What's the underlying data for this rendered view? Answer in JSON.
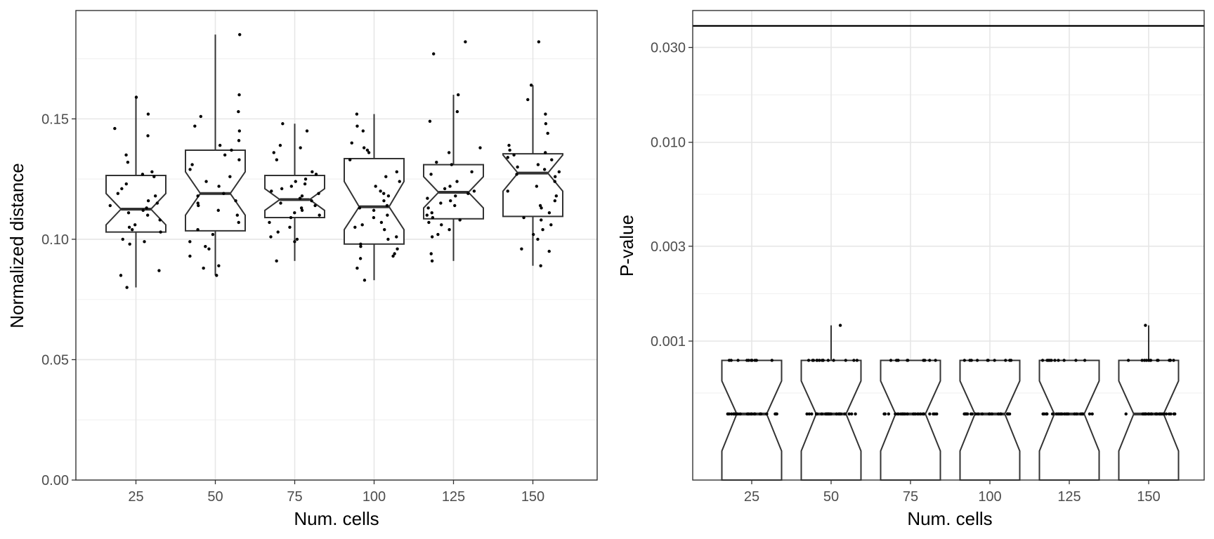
{
  "chart_data": [
    {
      "type": "boxplot",
      "notched": true,
      "xlabel": "Num. cells",
      "ylabel": "Normalized distance",
      "categories": [
        "25",
        "50",
        "75",
        "100",
        "125",
        "150"
      ],
      "ylim": [
        0,
        0.195
      ],
      "y_ticks": [
        "0.00",
        "0.05",
        "0.10",
        "0.15"
      ],
      "y_tick_values": [
        0,
        0.05,
        0.1,
        0.15
      ],
      "grid": true,
      "boxes": [
        {
          "category": "25",
          "min": 0.08,
          "q1": 0.103,
          "median": 0.1125,
          "q3": 0.1265,
          "max": 0.159,
          "notch": [
            0.106,
            0.119
          ]
        },
        {
          "category": "50",
          "min": 0.085,
          "q1": 0.1035,
          "median": 0.119,
          "q3": 0.137,
          "max": 0.185,
          "notch": [
            0.11,
            0.128
          ]
        },
        {
          "category": "75",
          "min": 0.091,
          "q1": 0.109,
          "median": 0.1165,
          "q3": 0.1265,
          "max": 0.148,
          "notch": [
            0.112,
            0.121
          ]
        },
        {
          "category": "100",
          "min": 0.083,
          "q1": 0.098,
          "median": 0.1135,
          "q3": 0.1335,
          "max": 0.152,
          "notch": [
            0.104,
            0.124
          ]
        },
        {
          "category": "125",
          "min": 0.091,
          "q1": 0.1085,
          "median": 0.1195,
          "q3": 0.131,
          "max": 0.16,
          "notch": [
            0.113,
            0.126
          ]
        },
        {
          "category": "150",
          "min": 0.089,
          "q1": 0.1095,
          "median": 0.1275,
          "q3": 0.1355,
          "max": 0.164,
          "notch": [
            0.12,
            0.135
          ]
        }
      ],
      "points": [
        {
          "category": "25",
          "values": [
            0.08,
            0.085,
            0.087,
            0.098,
            0.099,
            0.1,
            0.103,
            0.104,
            0.105,
            0.106,
            0.108,
            0.11,
            0.111,
            0.112,
            0.113,
            0.114,
            0.115,
            0.116,
            0.118,
            0.119,
            0.121,
            0.123,
            0.126,
            0.127,
            0.128,
            0.132,
            0.135,
            0.143,
            0.146,
            0.152,
            0.159
          ]
        },
        {
          "category": "50",
          "values": [
            0.085,
            0.088,
            0.089,
            0.093,
            0.096,
            0.097,
            0.099,
            0.102,
            0.104,
            0.107,
            0.11,
            0.112,
            0.114,
            0.115,
            0.116,
            0.118,
            0.119,
            0.122,
            0.124,
            0.126,
            0.129,
            0.131,
            0.133,
            0.135,
            0.137,
            0.139,
            0.141,
            0.145,
            0.147,
            0.151,
            0.153,
            0.16,
            0.185
          ]
        },
        {
          "category": "75",
          "values": [
            0.091,
            0.099,
            0.1,
            0.101,
            0.103,
            0.105,
            0.107,
            0.109,
            0.11,
            0.111,
            0.112,
            0.113,
            0.114,
            0.115,
            0.116,
            0.117,
            0.118,
            0.119,
            0.12,
            0.121,
            0.122,
            0.123,
            0.124,
            0.125,
            0.127,
            0.128,
            0.133,
            0.136,
            0.138,
            0.139,
            0.145,
            0.148
          ]
        },
        {
          "category": "100",
          "values": [
            0.083,
            0.088,
            0.092,
            0.093,
            0.094,
            0.096,
            0.097,
            0.098,
            0.1,
            0.101,
            0.104,
            0.105,
            0.106,
            0.107,
            0.109,
            0.11,
            0.112,
            0.113,
            0.114,
            0.116,
            0.118,
            0.119,
            0.12,
            0.122,
            0.124,
            0.126,
            0.128,
            0.133,
            0.136,
            0.137,
            0.138,
            0.14,
            0.145,
            0.147,
            0.152
          ]
        },
        {
          "category": "125",
          "values": [
            0.091,
            0.094,
            0.101,
            0.102,
            0.104,
            0.106,
            0.107,
            0.108,
            0.109,
            0.11,
            0.111,
            0.113,
            0.114,
            0.115,
            0.116,
            0.117,
            0.118,
            0.119,
            0.12,
            0.121,
            0.122,
            0.124,
            0.127,
            0.128,
            0.131,
            0.132,
            0.136,
            0.138,
            0.149,
            0.153,
            0.16,
            0.177,
            0.182
          ]
        },
        {
          "category": "150",
          "values": [
            0.089,
            0.095,
            0.096,
            0.1,
            0.102,
            0.104,
            0.106,
            0.108,
            0.109,
            0.111,
            0.113,
            0.114,
            0.116,
            0.118,
            0.12,
            0.122,
            0.124,
            0.126,
            0.127,
            0.128,
            0.129,
            0.13,
            0.131,
            0.133,
            0.134,
            0.135,
            0.136,
            0.137,
            0.139,
            0.144,
            0.148,
            0.152,
            0.158,
            0.164,
            0.182
          ]
        }
      ]
    },
    {
      "type": "boxplot",
      "notched": true,
      "xlabel": "Num. cells",
      "ylabel": "P-value",
      "y_scale": "log10",
      "categories": [
        "25",
        "50",
        "75",
        "100",
        "125",
        "150"
      ],
      "ylim": [
        0.0002,
        0.046
      ],
      "y_ticks": [
        "0.001",
        "0.003",
        "0.010",
        "0.030"
      ],
      "y_tick_values": [
        0.001,
        0.003,
        0.01,
        0.03
      ],
      "y_minor_values": [
        0.000548,
        0.001732,
        0.005477,
        0.017321
      ],
      "hline": 0.0385,
      "grid": true,
      "boxes": [
        {
          "category": "25",
          "min": 0.0002,
          "q1": 0.0002,
          "median": 0.00043,
          "q3": 0.0008,
          "max": 0.0008,
          "notch": [
            0.00028,
            0.00063
          ]
        },
        {
          "category": "50",
          "min": 0.0002,
          "q1": 0.0002,
          "median": 0.00043,
          "q3": 0.0008,
          "max": 0.0012,
          "notch": [
            0.00028,
            0.00063
          ]
        },
        {
          "category": "75",
          "min": 0.0002,
          "q1": 0.0002,
          "median": 0.00043,
          "q3": 0.0008,
          "max": 0.0008,
          "notch": [
            0.00028,
            0.00063
          ]
        },
        {
          "category": "100",
          "min": 0.0002,
          "q1": 0.0002,
          "median": 0.00043,
          "q3": 0.0008,
          "max": 0.0008,
          "notch": [
            0.00028,
            0.00063
          ]
        },
        {
          "category": "125",
          "min": 0.0002,
          "q1": 0.0002,
          "median": 0.00043,
          "q3": 0.0008,
          "max": 0.0008,
          "notch": [
            0.00028,
            0.00063
          ]
        },
        {
          "category": "150",
          "min": 0.0002,
          "q1": 0.0002,
          "median": 0.00043,
          "q3": 0.0008,
          "max": 0.0012,
          "notch": [
            0.00028,
            0.00063
          ]
        }
      ],
      "points": [
        {
          "category": "25",
          "values": [
            0.0008,
            0.0008,
            0.0008,
            0.0008,
            0.0008,
            0.0008,
            0.0008,
            0.0008,
            0.0008,
            0.0008,
            0.00043,
            0.00043,
            0.00043,
            0.00043,
            0.00043,
            0.00043,
            0.00043,
            0.00043,
            0.00043,
            0.00043,
            0.00043,
            0.00043,
            0.00043,
            0.00043,
            0.00043,
            0.00043,
            0.00043,
            0.00043,
            0.00043,
            0.00043
          ]
        },
        {
          "category": "50",
          "values": [
            0.0012,
            0.0008,
            0.0008,
            0.0008,
            0.0008,
            0.0008,
            0.0008,
            0.0008,
            0.0008,
            0.0008,
            0.0008,
            0.0008,
            0.0008,
            0.0008,
            0.0008,
            0.00043,
            0.00043,
            0.00043,
            0.00043,
            0.00043,
            0.00043,
            0.00043,
            0.00043,
            0.00043,
            0.00043,
            0.00043,
            0.00043,
            0.00043,
            0.00043,
            0.00043,
            0.00043,
            0.00043,
            0.00043,
            0.00043,
            0.00043,
            0.00043
          ]
        },
        {
          "category": "75",
          "values": [
            0.0008,
            0.0008,
            0.0008,
            0.0008,
            0.0008,
            0.0008,
            0.0008,
            0.0008,
            0.0008,
            0.0008,
            0.00043,
            0.00043,
            0.00043,
            0.00043,
            0.00043,
            0.00043,
            0.00043,
            0.00043,
            0.00043,
            0.00043,
            0.00043,
            0.00043,
            0.00043,
            0.00043,
            0.00043,
            0.00043,
            0.00043,
            0.00043,
            0.00043,
            0.00043
          ]
        },
        {
          "category": "100",
          "values": [
            0.0008,
            0.0008,
            0.0008,
            0.0008,
            0.0008,
            0.0008,
            0.0008,
            0.0008,
            0.0008,
            0.0008,
            0.00043,
            0.00043,
            0.00043,
            0.00043,
            0.00043,
            0.00043,
            0.00043,
            0.00043,
            0.00043,
            0.00043,
            0.00043,
            0.00043,
            0.00043,
            0.00043,
            0.00043,
            0.00043,
            0.00043,
            0.00043,
            0.00043,
            0.00043
          ]
        },
        {
          "category": "125",
          "values": [
            0.0008,
            0.0008,
            0.0008,
            0.0008,
            0.0008,
            0.0008,
            0.0008,
            0.0008,
            0.0008,
            0.0008,
            0.00043,
            0.00043,
            0.00043,
            0.00043,
            0.00043,
            0.00043,
            0.00043,
            0.00043,
            0.00043,
            0.00043,
            0.00043,
            0.00043,
            0.00043,
            0.00043,
            0.00043,
            0.00043,
            0.00043,
            0.00043,
            0.00043,
            0.00043
          ]
        },
        {
          "category": "150",
          "values": [
            0.0012,
            0.0008,
            0.0008,
            0.0008,
            0.0008,
            0.0008,
            0.0008,
            0.0008,
            0.0008,
            0.0008,
            0.0008,
            0.0008,
            0.0008,
            0.0008,
            0.0008,
            0.00043,
            0.00043,
            0.00043,
            0.00043,
            0.00043,
            0.00043,
            0.00043,
            0.00043,
            0.00043,
            0.00043,
            0.00043,
            0.00043,
            0.00043,
            0.00043,
            0.00043,
            0.00043,
            0.00043,
            0.00043,
            0.00043,
            0.00043,
            0.00043
          ]
        }
      ]
    }
  ]
}
